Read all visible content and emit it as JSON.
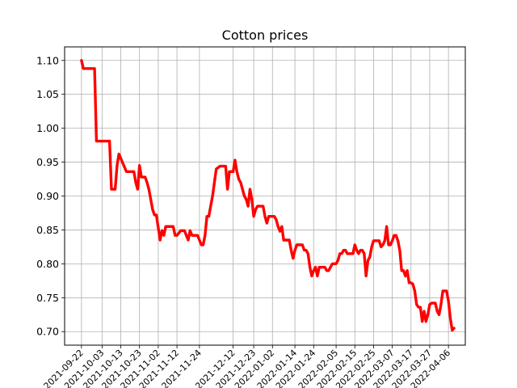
{
  "chart_data": {
    "type": "line",
    "title": "Cotton prices",
    "xlabel": "",
    "ylabel": "",
    "grid": true,
    "legend": "none",
    "line_color": "#ff0000",
    "ylim": [
      0.68,
      1.12
    ],
    "xlim": [
      "2021-09-13",
      "2022-04-15"
    ],
    "x_ticks": [
      "2021-09-22",
      "2021-10-03",
      "2021-10-13",
      "2021-10-23",
      "2021-11-02",
      "2021-11-12",
      "2021-11-24",
      "2021-12-12",
      "2021-12-23",
      "2022-01-02",
      "2022-01-14",
      "2022-01-24",
      "2022-02-05",
      "2022-02-15",
      "2022-02-25",
      "2022-03-07",
      "2022-03-17",
      "2022-03-27",
      "2022-04-06"
    ],
    "y_ticks": [
      "0.70",
      "0.75",
      "0.80",
      "0.85",
      "0.90",
      "0.95",
      "1.00",
      "1.05",
      "1.10"
    ],
    "x": [
      "2021-09-22",
      "2021-09-23",
      "2021-09-29",
      "2021-09-30",
      "2021-10-07",
      "2021-10-08",
      "2021-10-10",
      "2021-10-11",
      "2021-10-12",
      "2021-10-16",
      "2021-10-17",
      "2021-10-18",
      "2021-10-20",
      "2021-10-21",
      "2021-10-22",
      "2021-10-23",
      "2021-10-24",
      "2021-10-25",
      "2021-10-26",
      "2021-10-27",
      "2021-10-28",
      "2021-10-29",
      "2021-10-30",
      "2021-10-31",
      "2021-11-01",
      "2021-11-03",
      "2021-11-04",
      "2021-11-05",
      "2021-11-06",
      "2021-11-07",
      "2021-11-08",
      "2021-11-09",
      "2021-11-10",
      "2021-11-11",
      "2021-11-12",
      "2021-11-14",
      "2021-11-15",
      "2021-11-16",
      "2021-11-17",
      "2021-11-18",
      "2021-11-19",
      "2021-11-20",
      "2021-11-21",
      "2021-11-22",
      "2021-11-23",
      "2021-11-24",
      "2021-11-25",
      "2021-11-26",
      "2021-11-27",
      "2021-11-28",
      "2021-11-29",
      "2021-11-30",
      "2021-12-01",
      "2021-12-02",
      "2021-12-03",
      "2021-12-05",
      "2021-12-06",
      "2021-12-07",
      "2021-12-08",
      "2021-12-09",
      "2021-12-10",
      "2021-12-11",
      "2021-12-12",
      "2021-12-13",
      "2021-12-14",
      "2021-12-15",
      "2021-12-16",
      "2021-12-17",
      "2021-12-18",
      "2021-12-19",
      "2021-12-20",
      "2021-12-21",
      "2021-12-22",
      "2021-12-23",
      "2021-12-24",
      "2021-12-25",
      "2021-12-26",
      "2021-12-27",
      "2021-12-28",
      "2021-12-29",
      "2021-12-30",
      "2021-12-31",
      "2022-01-01",
      "2022-01-02",
      "2022-01-03",
      "2022-01-04",
      "2022-01-05",
      "2022-01-06",
      "2022-01-07",
      "2022-01-08",
      "2022-01-09",
      "2022-01-10",
      "2022-01-11",
      "2022-01-12",
      "2022-01-13",
      "2022-01-14",
      "2022-01-15",
      "2022-01-16",
      "2022-01-17",
      "2022-01-18",
      "2022-01-19",
      "2022-01-20",
      "2022-01-21",
      "2022-01-22",
      "2022-01-23",
      "2022-01-24",
      "2022-01-25",
      "2022-01-26",
      "2022-01-27",
      "2022-01-28",
      "2022-01-29",
      "2022-01-30",
      "2022-01-31",
      "2022-02-01",
      "2022-02-02",
      "2022-02-03",
      "2022-02-04",
      "2022-02-05",
      "2022-02-06",
      "2022-02-07",
      "2022-02-08",
      "2022-02-09",
      "2022-02-10",
      "2022-02-11",
      "2022-02-12",
      "2022-02-13",
      "2022-02-14",
      "2022-02-15",
      "2022-02-16",
      "2022-02-17",
      "2022-02-18",
      "2022-02-19",
      "2022-02-20",
      "2022-02-21",
      "2022-02-22",
      "2022-02-23",
      "2022-02-24",
      "2022-02-25",
      "2022-02-26",
      "2022-02-27",
      "2022-02-28",
      "2022-03-01",
      "2022-03-02",
      "2022-03-03",
      "2022-03-04",
      "2022-03-05",
      "2022-03-06",
      "2022-03-07",
      "2022-03-08",
      "2022-03-09",
      "2022-03-10",
      "2022-03-11",
      "2022-03-12",
      "2022-03-13",
      "2022-03-14",
      "2022-03-15",
      "2022-03-16",
      "2022-03-17",
      "2022-03-18",
      "2022-03-19",
      "2022-03-20",
      "2022-03-21",
      "2022-03-22",
      "2022-03-23",
      "2022-03-24",
      "2022-03-25",
      "2022-03-26",
      "2022-03-27",
      "2022-03-28",
      "2022-03-29",
      "2022-03-30",
      "2022-03-31",
      "2022-04-01",
      "2022-04-02",
      "2022-04-03",
      "2022-04-04",
      "2022-04-05",
      "2022-04-06",
      "2022-04-07",
      "2022-04-08",
      "2022-04-09"
    ],
    "series": [
      {
        "values": [
          1.1,
          1.088,
          1.088,
          0.981,
          0.981,
          0.91,
          0.91,
          0.945,
          0.962,
          0.936,
          0.936,
          0.936,
          0.936,
          0.92,
          0.91,
          0.945,
          0.928,
          0.928,
          0.928,
          0.92,
          0.91,
          0.895,
          0.88,
          0.872,
          0.872,
          0.835,
          0.849,
          0.842,
          0.855,
          0.855,
          0.855,
          0.855,
          0.855,
          0.842,
          0.842,
          0.849,
          0.849,
          0.849,
          0.842,
          0.835,
          0.849,
          0.842,
          0.842,
          0.842,
          0.842,
          0.835,
          0.828,
          0.828,
          0.842,
          0.87,
          0.87,
          0.885,
          0.9,
          0.92,
          0.94,
          0.944,
          0.944,
          0.944,
          0.944,
          0.91,
          0.936,
          0.936,
          0.936,
          0.953,
          0.936,
          0.925,
          0.92,
          0.91,
          0.9,
          0.895,
          0.885,
          0.91,
          0.895,
          0.87,
          0.88,
          0.885,
          0.885,
          0.885,
          0.885,
          0.87,
          0.86,
          0.87,
          0.87,
          0.87,
          0.87,
          0.865,
          0.855,
          0.848,
          0.855,
          0.835,
          0.835,
          0.835,
          0.835,
          0.82,
          0.808,
          0.82,
          0.828,
          0.828,
          0.828,
          0.828,
          0.82,
          0.82,
          0.815,
          0.795,
          0.782,
          0.79,
          0.795,
          0.782,
          0.795,
          0.795,
          0.795,
          0.795,
          0.79,
          0.79,
          0.795,
          0.8,
          0.8,
          0.8,
          0.805,
          0.815,
          0.815,
          0.82,
          0.82,
          0.815,
          0.815,
          0.815,
          0.815,
          0.828,
          0.82,
          0.815,
          0.82,
          0.82,
          0.815,
          0.782,
          0.805,
          0.81,
          0.825,
          0.834,
          0.834,
          0.834,
          0.834,
          0.825,
          0.828,
          0.834,
          0.855,
          0.828,
          0.828,
          0.834,
          0.842,
          0.842,
          0.834,
          0.82,
          0.79,
          0.79,
          0.782,
          0.79,
          0.772,
          0.772,
          0.77,
          0.76,
          0.74,
          0.736,
          0.736,
          0.715,
          0.73,
          0.715,
          0.725,
          0.74,
          0.742,
          0.742,
          0.742,
          0.73,
          0.725,
          0.74,
          0.76,
          0.76,
          0.76,
          0.745,
          0.72,
          0.702,
          0.705
        ]
      }
    ]
  }
}
